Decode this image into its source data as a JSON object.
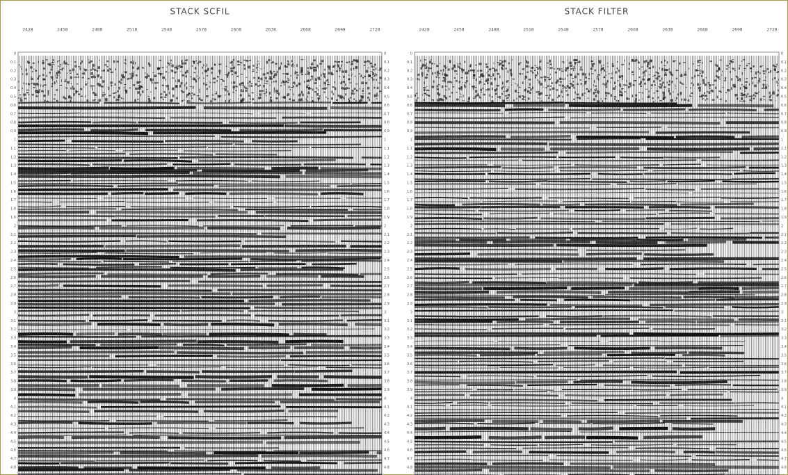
{
  "panels": [
    {
      "title": "STACK SCFIL",
      "x_labels": [
        "2428",
        "2458",
        "2488",
        "2518",
        "2548",
        "2578",
        "2608",
        "2638",
        "2668",
        "2698",
        "2728"
      ],
      "y_labels": [
        "0",
        "0.1",
        "0.2",
        "0.3",
        "0.4",
        "0.5",
        "0.6",
        "0.7",
        "0.8",
        "0.9",
        "1",
        "1.1",
        "1.2",
        "1.3",
        "1.4",
        "1.5",
        "1.6",
        "1.7",
        "1.8",
        "1.9",
        "2",
        "2.1",
        "2.2",
        "2.3",
        "2.4",
        "2.5",
        "2.6",
        "2.7",
        "2.8",
        "2.9",
        "3",
        "3.1",
        "3.2",
        "3.3",
        "3.4",
        "3.5",
        "3.6",
        "3.7",
        "3.8",
        "3.9",
        "4",
        "4.1",
        "4.2",
        "4.3",
        "4.4",
        "4.5",
        "4.6",
        "4.7",
        "4.8"
      ]
    },
    {
      "title": "STACK FILTER",
      "x_labels": [
        "2428",
        "2458",
        "2488",
        "2518",
        "2548",
        "2578",
        "2608",
        "2638",
        "2668",
        "2698",
        "2728"
      ],
      "y_labels": [
        "0",
        "0.1",
        "0.2",
        "0.3",
        "0.4",
        "0.5",
        "0.6",
        "0.7",
        "0.8",
        "0.9",
        "1",
        "1.1",
        "1.2",
        "1.3",
        "1.4",
        "1.5",
        "1.6",
        "1.7",
        "1.8",
        "1.9",
        "2",
        "2.1",
        "2.2",
        "2.3",
        "2.4",
        "2.5",
        "2.6",
        "2.7",
        "2.8",
        "2.9",
        "3",
        "3.1",
        "3.2",
        "3.3",
        "3.4",
        "3.5",
        "3.6",
        "3.7",
        "3.8",
        "3.9",
        "4",
        "4.1",
        "4.2",
        "4.3",
        "4.4",
        "4.5",
        "4.6",
        "4.7",
        "4.8"
      ]
    }
  ]
}
